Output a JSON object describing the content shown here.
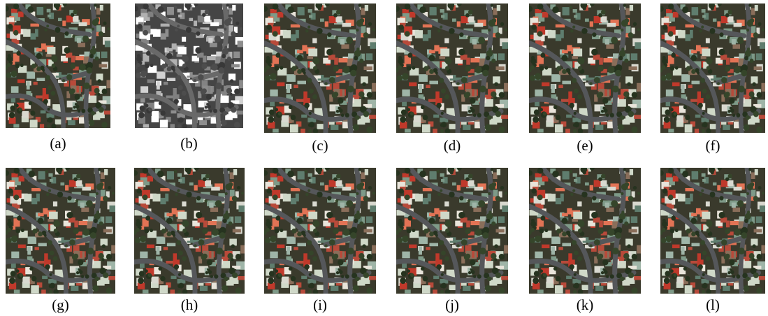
{
  "captions": [
    "(a)",
    "(b)",
    "(c)",
    "(d)",
    "(e)",
    "(f)",
    "(g)",
    "(h)",
    "(i)",
    "(j)",
    "(k)",
    "(l)"
  ]
}
